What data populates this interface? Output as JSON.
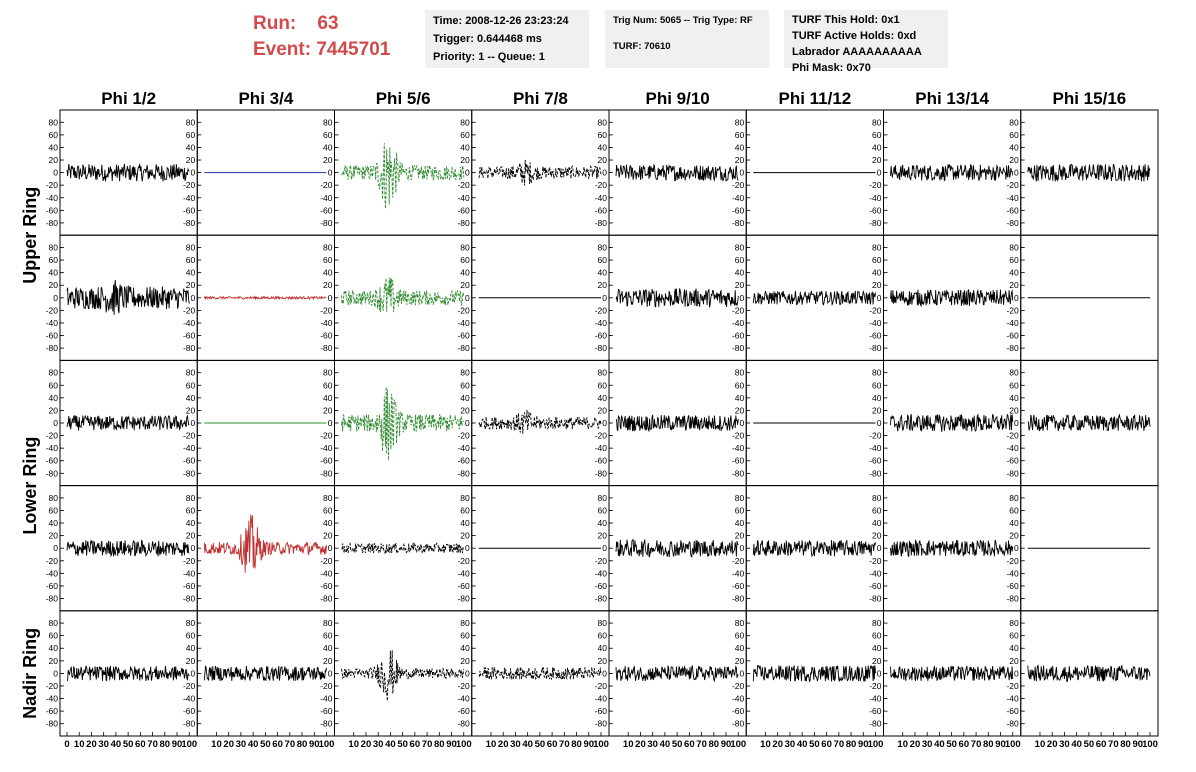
{
  "header": {
    "run_label": "Run:",
    "run_value": "63",
    "event_label": "Event:",
    "event_value": "7445701"
  },
  "info": {
    "time": "Time: 2008-12-26 23:23:24",
    "trigger": "Trigger: 0.644468 ms",
    "priority": "Priority: 1 -- Queue: 1",
    "trig_num": "Trig Num: 5065 -- Trig Type: RF",
    "turf": "TURF: 70610",
    "turf_hold": "TURF This Hold: 0x1",
    "turf_active": "TURF Active Holds: 0xd",
    "labrador": "Labrador AAAAAAAAAA",
    "phi_mask": "Phi Mask: 0x70"
  },
  "colors": {
    "header_red": "#d24b4b",
    "trace_black": "#000000",
    "trace_green": "#2e8b2e",
    "trace_red": "#c03030",
    "trace_blue": "#1f3aa8"
  },
  "chart_data": {
    "type": "line",
    "columns": [
      "Phi 1/2",
      "Phi 3/4",
      "Phi 5/6",
      "Phi 7/8",
      "Phi 9/10",
      "Phi 11/12",
      "Phi 13/14",
      "Phi 15/16"
    ],
    "ring_labels": [
      "Upper Ring",
      "Lower Ring",
      "Nadir Ring"
    ],
    "rows": 5,
    "ylim": [
      -90,
      90
    ],
    "yticks": [
      80,
      60,
      40,
      20,
      0,
      -20,
      -40,
      -60,
      -80
    ],
    "xlim": [
      0,
      100
    ],
    "xticks": [
      0,
      10,
      20,
      30,
      40,
      50,
      60,
      70,
      80,
      90,
      100
    ],
    "panels": [
      [
        {
          "style": "solid",
          "color": "black",
          "amp": 14,
          "burst": 0
        },
        {
          "style": "flat",
          "color": "blue",
          "amp": 0,
          "burst": 0
        },
        {
          "style": "dashed",
          "color": "green",
          "amp": 12,
          "burst": 55
        },
        {
          "style": "dashed",
          "color": "black",
          "amp": 10,
          "burst": 12
        },
        {
          "style": "solid",
          "color": "black",
          "amp": 13,
          "burst": 0
        },
        {
          "style": "flat",
          "color": "black",
          "amp": 0,
          "burst": 0
        },
        {
          "style": "solid",
          "color": "black",
          "amp": 13,
          "burst": 0
        },
        {
          "style": "solid",
          "color": "black",
          "amp": 14,
          "burst": 0
        }
      ],
      [
        {
          "style": "solid",
          "color": "black",
          "amp": 18,
          "burst": 12
        },
        {
          "style": "solid",
          "color": "red",
          "amp": 2,
          "burst": 0
        },
        {
          "style": "dashed",
          "color": "green",
          "amp": 12,
          "burst": 25
        },
        {
          "style": "flat",
          "color": "black",
          "amp": 0,
          "burst": 0
        },
        {
          "style": "solid",
          "color": "black",
          "amp": 15,
          "burst": 0
        },
        {
          "style": "solid",
          "color": "black",
          "amp": 11,
          "burst": 0
        },
        {
          "style": "solid",
          "color": "black",
          "amp": 13,
          "burst": 0
        },
        {
          "style": "flat",
          "color": "black",
          "amp": 0,
          "burst": 0
        }
      ],
      [
        {
          "style": "solid",
          "color": "black",
          "amp": 12,
          "burst": 0
        },
        {
          "style": "flat",
          "color": "green",
          "amp": 0,
          "burst": 0
        },
        {
          "style": "dashed",
          "color": "green",
          "amp": 14,
          "burst": 50
        },
        {
          "style": "dashed",
          "color": "black",
          "amp": 10,
          "burst": 12
        },
        {
          "style": "solid",
          "color": "black",
          "amp": 13,
          "burst": 0
        },
        {
          "style": "flat",
          "color": "black",
          "amp": 0,
          "burst": 0
        },
        {
          "style": "solid",
          "color": "black",
          "amp": 14,
          "burst": 0
        },
        {
          "style": "solid",
          "color": "black",
          "amp": 13,
          "burst": 0
        }
      ],
      [
        {
          "style": "solid",
          "color": "black",
          "amp": 13,
          "burst": 0
        },
        {
          "style": "solid",
          "color": "red",
          "amp": 10,
          "burst": 45
        },
        {
          "style": "dashed",
          "color": "black",
          "amp": 8,
          "burst": 0
        },
        {
          "style": "flat",
          "color": "black",
          "amp": 0,
          "burst": 0
        },
        {
          "style": "solid",
          "color": "black",
          "amp": 14,
          "burst": 0
        },
        {
          "style": "solid",
          "color": "black",
          "amp": 13,
          "burst": 0
        },
        {
          "style": "solid",
          "color": "black",
          "amp": 13,
          "burst": 0
        },
        {
          "style": "flat",
          "color": "black",
          "amp": 0,
          "burst": 0
        }
      ],
      [
        {
          "style": "solid",
          "color": "black",
          "amp": 12,
          "burst": 0
        },
        {
          "style": "solid",
          "color": "black",
          "amp": 12,
          "burst": 0
        },
        {
          "style": "dashed",
          "color": "black",
          "amp": 8,
          "burst": 38
        },
        {
          "style": "dashed",
          "color": "black",
          "amp": 10,
          "burst": 0
        },
        {
          "style": "solid",
          "color": "black",
          "amp": 12,
          "burst": 0
        },
        {
          "style": "solid",
          "color": "black",
          "amp": 13,
          "burst": 0
        },
        {
          "style": "solid",
          "color": "black",
          "amp": 12,
          "burst": 0
        },
        {
          "style": "solid",
          "color": "black",
          "amp": 13,
          "burst": 0
        }
      ]
    ]
  }
}
